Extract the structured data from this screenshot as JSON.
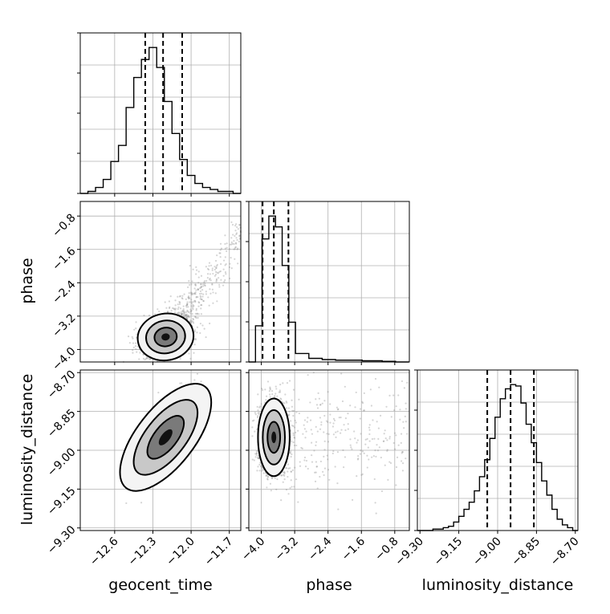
{
  "figure": {
    "type": "corner-plot",
    "parameters": [
      "geocent_time",
      "phase",
      "luminosity_distance"
    ]
  },
  "chart_data": [
    {
      "type": "histogram",
      "parameter": "geocent_time",
      "bin_edges": [
        -12.87,
        -12.81,
        -12.75,
        -12.69,
        -12.63,
        -12.57,
        -12.51,
        -12.45,
        -12.39,
        -12.33,
        -12.27,
        -12.21,
        -12.15,
        -12.09,
        -12.03,
        -11.97,
        -11.91,
        -11.85,
        -11.79,
        -11.73,
        -11.67,
        -11.61
      ],
      "counts": [
        0,
        1,
        3,
        7,
        16,
        24,
        43,
        58,
        67,
        73,
        63,
        46,
        30,
        17,
        9,
        5,
        3,
        2,
        1,
        1,
        0
      ],
      "quantiles": [
        -12.36,
        -12.22,
        -12.07
      ],
      "xlim": [
        -12.87,
        -11.61
      ],
      "xticks": [
        -12.6,
        -12.3,
        -12.0,
        -11.7
      ],
      "xtick_labels": [
        "−12.6",
        "−12.3",
        "−12.0",
        "−11.7"
      ]
    },
    {
      "type": "histogram",
      "parameter": "phase",
      "bin_edges": [
        -4.3,
        -4.14,
        -3.98,
        -3.82,
        -3.66,
        -3.5,
        -3.34,
        -3.18,
        -3.02,
        -2.86,
        -2.7,
        -2.54,
        -2.38,
        -2.22,
        -2.06,
        -1.9,
        -1.74,
        -1.58,
        -1.42,
        -1.26,
        -1.1,
        -0.94,
        -0.78,
        -0.62,
        -0.46
      ],
      "counts": [
        0,
        30,
        102,
        121,
        112,
        80,
        33,
        7,
        7,
        3,
        3,
        2,
        2,
        1.5,
        1.5,
        1.5,
        1.5,
        1,
        1,
        1,
        0.5,
        0.5,
        0,
        0
      ],
      "quantiles": [
        -3.97,
        -3.7,
        -3.35
      ],
      "xlim": [
        -4.3,
        -0.45
      ],
      "xticks": [
        -4.0,
        -3.2,
        -2.4,
        -1.6,
        -0.8
      ],
      "xtick_labels": [
        "−4.0",
        "−3.2",
        "−2.4",
        "−1.6",
        "−0.8"
      ]
    },
    {
      "type": "histogram",
      "parameter": "luminosity_distance",
      "bin_edges": [
        -9.31,
        -9.29,
        -9.27,
        -9.25,
        -9.23,
        -9.21,
        -9.19,
        -9.17,
        -9.15,
        -9.13,
        -9.11,
        -9.09,
        -9.07,
        -9.05,
        -9.03,
        -9.01,
        -8.99,
        -8.97,
        -8.95,
        -8.93,
        -8.91,
        -8.89,
        -8.87,
        -8.85,
        -8.83,
        -8.81,
        -8.79,
        -8.77,
        -8.75,
        -8.73,
        -8.71,
        -8.69
      ],
      "counts": [
        0,
        0,
        0,
        1,
        1,
        2,
        3,
        6,
        10,
        15,
        20,
        28,
        38,
        50,
        65,
        80,
        93,
        100,
        103,
        102,
        90,
        75,
        62,
        48,
        35,
        25,
        15,
        8,
        4,
        2,
        0
      ],
      "quantiles": [
        -9.04,
        -8.95,
        -8.86
      ],
      "xlim": [
        -9.31,
        -8.69
      ],
      "xticks": [
        -9.3,
        -9.15,
        -9.0,
        -8.85,
        -8.7
      ],
      "xtick_labels": [
        "−9.30",
        "−9.15",
        "−9.00",
        "−8.85",
        "−8.70"
      ]
    },
    {
      "type": "scatter-density",
      "x_parameter": "geocent_time",
      "y_parameter": "phase",
      "center": [
        -12.2,
        -3.7
      ],
      "xlim": [
        -12.87,
        -11.61
      ],
      "ylim": [
        -4.3,
        -0.45
      ],
      "yticks": [
        -4.0,
        -3.2,
        -2.4,
        -1.6,
        -0.8
      ],
      "ytick_labels": [
        "−4.0",
        "−3.2",
        "−2.4",
        "−1.6",
        "−0.8"
      ]
    },
    {
      "type": "scatter-density",
      "x_parameter": "geocent_time",
      "y_parameter": "luminosity_distance",
      "center": [
        -12.2,
        -8.95
      ],
      "xlim": [
        -12.87,
        -11.61
      ],
      "ylim": [
        -9.31,
        -8.69
      ],
      "yticks": [
        -9.3,
        -9.15,
        -9.0,
        -8.85,
        -8.7
      ],
      "ytick_labels": [
        "−9.30",
        "−9.15",
        "−9.00",
        "−8.85",
        "−8.70"
      ]
    },
    {
      "type": "scatter-density",
      "x_parameter": "phase",
      "y_parameter": "luminosity_distance",
      "center": [
        -3.7,
        -8.95
      ],
      "xlim": [
        -4.3,
        -0.45
      ],
      "ylim": [
        -9.31,
        -8.69
      ]
    }
  ]
}
